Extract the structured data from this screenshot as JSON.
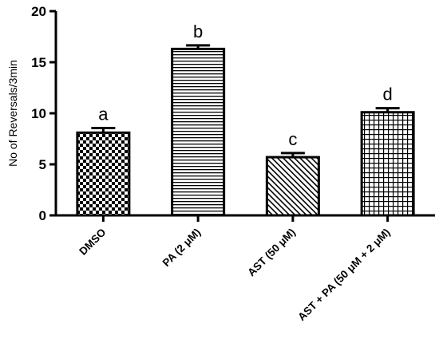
{
  "chart_data": {
    "type": "bar",
    "categories": [
      "DMSO",
      "PA (2 μM)",
      "AST (50 μM)",
      "AST + PA (50 μM + 2 μM)"
    ],
    "values": [
      8.1,
      16.3,
      5.7,
      10.1
    ],
    "errors": [
      0.45,
      0.35,
      0.4,
      0.4
    ],
    "significance_labels": [
      "a",
      "b",
      "c",
      "d"
    ],
    "patterns": [
      "checkerboard",
      "horizontal-lines",
      "diagonal-lines",
      "grid"
    ],
    "title": "",
    "xlabel": "",
    "ylabel": "No of Reversals/3min",
    "ylim": [
      0,
      20
    ],
    "yticks": [
      0,
      5,
      10,
      15,
      20
    ],
    "grid": false,
    "legend": "none"
  }
}
